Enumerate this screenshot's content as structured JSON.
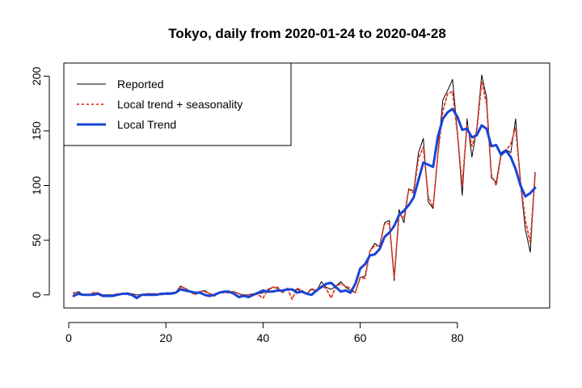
{
  "chart_data": {
    "type": "line",
    "title": "Tokyo, daily from 2020-01-24 to 2020-04-28",
    "xlabel": "",
    "ylabel": "",
    "xlim": [
      -1,
      99
    ],
    "ylim": [
      -12,
      212
    ],
    "x_ticks": [
      0,
      20,
      40,
      60,
      80
    ],
    "y_ticks": [
      0,
      50,
      100,
      150,
      200
    ],
    "grid": false,
    "legend": {
      "position": "top-left"
    },
    "series": [
      {
        "name": "Reported",
        "color": "#000000",
        "style": "solid",
        "x": [
          1,
          2,
          3,
          4,
          5,
          6,
          7,
          8,
          9,
          10,
          11,
          12,
          13,
          14,
          15,
          16,
          17,
          18,
          19,
          20,
          21,
          22,
          23,
          24,
          25,
          26,
          27,
          28,
          29,
          30,
          31,
          32,
          33,
          34,
          35,
          36,
          37,
          38,
          39,
          40,
          41,
          42,
          43,
          44,
          45,
          46,
          47,
          48,
          49,
          50,
          51,
          52,
          53,
          54,
          55,
          56,
          57,
          58,
          59,
          60,
          61,
          62,
          63,
          64,
          65,
          66,
          67,
          68,
          69,
          70,
          71,
          72,
          73,
          74,
          75,
          76,
          77,
          78,
          79,
          80,
          81,
          82,
          83,
          84,
          85,
          86,
          87,
          88,
          89,
          90,
          91,
          92,
          93,
          94,
          95,
          96
        ],
        "values": [
          1,
          3,
          0,
          0,
          1,
          2,
          0,
          0,
          0,
          1,
          1,
          2,
          1,
          0,
          0,
          1,
          1,
          1,
          0,
          2,
          2,
          2,
          8,
          6,
          3,
          1,
          3,
          4,
          1,
          0,
          2,
          3,
          2,
          3,
          1,
          0,
          0,
          1,
          1,
          2,
          4,
          7,
          6,
          2,
          6,
          4,
          5,
          3,
          1,
          5,
          3,
          12,
          7,
          5,
          8,
          12,
          7,
          4,
          2,
          16,
          17,
          40,
          47,
          44,
          66,
          68,
          13,
          78,
          66,
          97,
          95,
          130,
          143,
          85,
          79,
          130,
          178,
          187,
          197,
          150,
          91,
          161,
          126,
          152,
          201,
          181,
          107,
          103,
          130,
          133,
          130,
          161,
          102,
          60,
          39,
          112
        ]
      },
      {
        "name": "Local trend + seasonality",
        "color": "#e03a2a",
        "style": "dashed",
        "x": [
          1,
          2,
          3,
          4,
          5,
          6,
          7,
          8,
          9,
          10,
          11,
          12,
          13,
          14,
          15,
          16,
          17,
          18,
          19,
          20,
          21,
          22,
          23,
          24,
          25,
          26,
          27,
          28,
          29,
          30,
          31,
          32,
          33,
          34,
          35,
          36,
          37,
          38,
          39,
          40,
          41,
          42,
          43,
          44,
          45,
          46,
          47,
          48,
          49,
          50,
          51,
          52,
          53,
          54,
          55,
          56,
          57,
          58,
          59,
          60,
          61,
          62,
          63,
          64,
          65,
          66,
          67,
          68,
          69,
          70,
          71,
          72,
          73,
          74,
          75,
          76,
          77,
          78,
          79,
          80,
          81,
          82,
          83,
          84,
          85,
          86,
          87,
          88,
          89,
          90,
          91,
          92,
          93,
          94,
          95,
          96
        ],
        "values": [
          2,
          1,
          0,
          0,
          2,
          2,
          -1,
          -1,
          -1,
          1,
          1,
          1,
          1,
          -2,
          0,
          1,
          1,
          1,
          0,
          1,
          2,
          2,
          7,
          6,
          3,
          0,
          3,
          3,
          1,
          -1,
          2,
          2,
          2,
          3,
          1,
          -1,
          0,
          1,
          0,
          -3,
          5,
          7,
          7,
          2,
          6,
          -4,
          6,
          4,
          1,
          6,
          3,
          8,
          6,
          -3,
          8,
          10,
          8,
          6,
          2,
          16,
          15,
          40,
          45,
          45,
          65,
          65,
          16,
          74,
          70,
          97,
          93,
          125,
          135,
          90,
          80,
          129,
          168,
          184,
          186,
          148,
          100,
          156,
          136,
          149,
          195,
          175,
          110,
          100,
          128,
          132,
          138,
          153,
          104,
          68,
          48,
          110
        ]
      },
      {
        "name": "Local Trend",
        "color": "#1a44d6",
        "style": "solid-thick",
        "x": [
          1,
          2,
          3,
          4,
          5,
          6,
          7,
          8,
          9,
          10,
          11,
          12,
          13,
          14,
          15,
          16,
          17,
          18,
          19,
          20,
          21,
          22,
          23,
          24,
          25,
          26,
          27,
          28,
          29,
          30,
          31,
          32,
          33,
          34,
          35,
          36,
          37,
          38,
          39,
          40,
          41,
          42,
          43,
          44,
          45,
          46,
          47,
          48,
          49,
          50,
          51,
          52,
          53,
          54,
          55,
          56,
          57,
          58,
          59,
          60,
          61,
          62,
          63,
          64,
          65,
          66,
          67,
          68,
          69,
          70,
          71,
          72,
          73,
          74,
          75,
          76,
          77,
          78,
          79,
          80,
          81,
          82,
          83,
          84,
          85,
          86,
          87,
          88,
          89,
          90,
          91,
          92,
          93,
          94,
          95,
          96
        ],
        "values": [
          -1,
          1,
          0,
          0,
          0,
          1,
          -1,
          -1,
          -1,
          0,
          1,
          1,
          0,
          -3,
          0,
          0,
          0,
          0,
          1,
          1,
          1,
          2,
          5,
          4,
          3,
          2,
          2,
          0,
          -1,
          0,
          2,
          3,
          3,
          1,
          -2,
          -1,
          -2,
          0,
          2,
          4,
          3,
          3,
          4,
          4,
          5,
          5,
          2,
          3,
          1,
          0,
          4,
          7,
          10,
          11,
          7,
          3,
          4,
          2,
          10,
          24,
          28,
          36,
          37,
          42,
          53,
          57,
          63,
          73,
          77,
          82,
          89,
          105,
          121,
          119,
          117,
          145,
          161,
          167,
          170,
          163,
          151,
          152,
          144,
          146,
          155,
          152,
          136,
          137,
          128,
          132,
          126,
          115,
          100,
          90,
          93,
          98
        ]
      }
    ]
  }
}
